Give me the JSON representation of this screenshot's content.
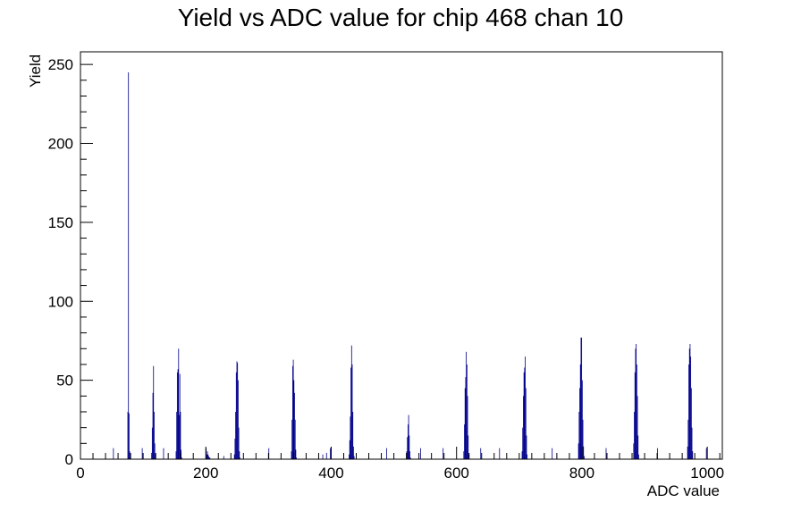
{
  "chart_data": {
    "type": "bar",
    "title": "Yield vs ADC value for chip 468 chan 10",
    "xlabel": "ADC value",
    "ylabel": "Yield",
    "xlim": [
      0,
      1024
    ],
    "ylim": [
      0,
      258
    ],
    "x_ticks": [
      0,
      200,
      400,
      600,
      800,
      1000
    ],
    "y_ticks": [
      0,
      50,
      100,
      150,
      200,
      250
    ],
    "grid": false,
    "legend": "none",
    "color": "#00008b",
    "series": [
      {
        "x": [
          75,
          76,
          77,
          78,
          79,
          113,
          114,
          115,
          116,
          117,
          118,
          119,
          152,
          153,
          154,
          155,
          156,
          157,
          158,
          159,
          160,
          161,
          200,
          201,
          202,
          203,
          204,
          205,
          206,
          245,
          246,
          247,
          248,
          249,
          250,
          251,
          252,
          253,
          254,
          336,
          337,
          338,
          339,
          340,
          341,
          342,
          343,
          344,
          428,
          429,
          430,
          431,
          432,
          433,
          434,
          435,
          436,
          520,
          521,
          522,
          523,
          524,
          525,
          526,
          611,
          612,
          613,
          614,
          615,
          616,
          617,
          618,
          619,
          704,
          705,
          706,
          707,
          708,
          709,
          710,
          711,
          712,
          794,
          795,
          796,
          797,
          798,
          799,
          800,
          801,
          802,
          803,
          882,
          883,
          884,
          885,
          886,
          887,
          888,
          889,
          890,
          968,
          969,
          970,
          971,
          972,
          973,
          974,
          975,
          976
        ],
        "values": [
          30,
          245,
          29,
          5,
          1,
          4,
          20,
          42,
          59,
          30,
          10,
          3,
          5,
          30,
          55,
          57,
          70,
          28,
          54,
          30,
          6,
          1,
          7,
          3,
          5,
          3,
          2,
          1,
          1,
          3,
          13,
          30,
          55,
          62,
          61,
          50,
          20,
          5,
          1,
          5,
          25,
          59,
          63,
          50,
          42,
          25,
          6,
          1,
          3,
          12,
          27,
          58,
          72,
          60,
          30,
          8,
          2,
          5,
          14,
          22,
          28,
          15,
          5,
          1,
          5,
          22,
          45,
          52,
          68,
          60,
          40,
          15,
          3,
          5,
          20,
          40,
          55,
          58,
          65,
          45,
          15,
          3,
          10,
          30,
          45,
          60,
          77,
          77,
          50,
          25,
          8,
          2,
          10,
          30,
          55,
          70,
          73,
          60,
          40,
          15,
          3,
          8,
          25,
          60,
          70,
          73,
          65,
          45,
          20,
          5
        ]
      }
    ],
    "sparse_hits": [
      {
        "x": 52,
        "value": 7
      },
      {
        "x": 98,
        "value": 7
      },
      {
        "x": 132,
        "value": 7
      },
      {
        "x": 228,
        "value": 2
      },
      {
        "x": 300,
        "value": 7
      },
      {
        "x": 386,
        "value": 3
      },
      {
        "x": 392,
        "value": 4
      },
      {
        "x": 398,
        "value": 7
      },
      {
        "x": 488,
        "value": 7
      },
      {
        "x": 542,
        "value": 7
      },
      {
        "x": 578,
        "value": 7
      },
      {
        "x": 638,
        "value": 7
      },
      {
        "x": 668,
        "value": 7
      },
      {
        "x": 752,
        "value": 7
      },
      {
        "x": 838,
        "value": 7
      },
      {
        "x": 920,
        "value": 7
      },
      {
        "x": 998,
        "value": 7
      }
    ]
  }
}
